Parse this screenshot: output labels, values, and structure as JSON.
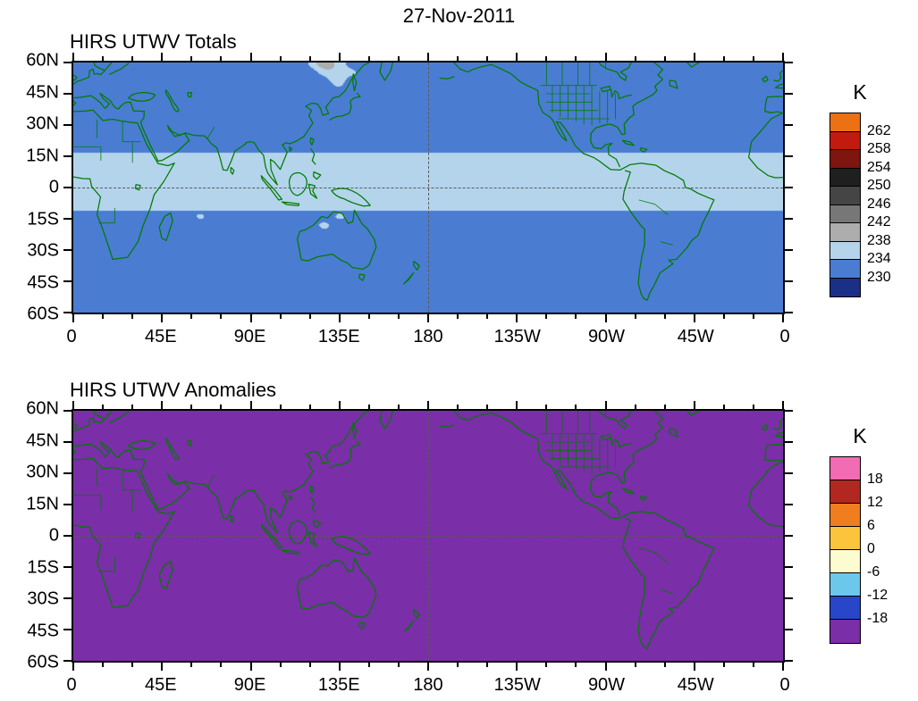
{
  "figure": {
    "date_title": "27-Nov-2011"
  },
  "map_style": {
    "coastline_color": "#007B00",
    "frame_color": "#000000",
    "reference_line_color": "#5A5A5A",
    "background": "#FFFFFF"
  },
  "chart_data": [
    {
      "type": "heatmap",
      "title": "HIRS UTWV Totals",
      "units": "K",
      "projection": "cylindrical-equidistant",
      "x_tick_labels": [
        "0",
        "45E",
        "90E",
        "135E",
        "180",
        "135W",
        "90W",
        "45W",
        "0"
      ],
      "y_tick_labels": [
        "60N",
        "45N",
        "30N",
        "15N",
        "0",
        "15S",
        "30S",
        "45S",
        "60S"
      ],
      "lon_range_deg": [
        0,
        360
      ],
      "lat_range_deg": [
        60,
        -60
      ],
      "reference_lines": [
        "meridian-180-dashed",
        "equator-dashed"
      ],
      "overlay": "green-coastlines-and-borders",
      "colorbar": {
        "title": "K",
        "boundary_labels": [
          "262",
          "258",
          "254",
          "250",
          "246",
          "242",
          "238",
          "234",
          "230"
        ],
        "levels_desc": [
          262,
          258,
          254,
          250,
          246,
          242,
          238,
          234,
          230
        ],
        "colors_top_to_bottom": [
          "#EC7014",
          "#C21A0E",
          "#7E150F",
          "#1F1F1F",
          "#454545",
          "#777777",
          "#ADADAD",
          "#B4D4EC",
          "#4A7CD2",
          "#1C2F86"
        ]
      }
    },
    {
      "type": "heatmap",
      "title": "HIRS UTWV Anomalies",
      "units": "K",
      "projection": "cylindrical-equidistant",
      "x_tick_labels": [
        "0",
        "45E",
        "90E",
        "135E",
        "180",
        "135W",
        "90W",
        "45W",
        "0"
      ],
      "y_tick_labels": [
        "60N",
        "45N",
        "30N",
        "15N",
        "0",
        "15S",
        "30S",
        "45S",
        "60S"
      ],
      "lon_range_deg": [
        0,
        360
      ],
      "lat_range_deg": [
        60,
        -60
      ],
      "reference_lines": [
        "meridian-180-dashed",
        "equator-dashed"
      ],
      "overlay": "green-coastlines-and-borders",
      "colorbar": {
        "title": "K",
        "boundary_labels": [
          "18",
          "12",
          "6",
          "0",
          "-6",
          "-12",
          "-18"
        ],
        "levels_desc": [
          18,
          12,
          6,
          0,
          -6,
          -12,
          -18
        ],
        "colors_top_to_bottom": [
          "#F16CB2",
          "#B22820",
          "#F07E1E",
          "#FCC33C",
          "#FDFBD0",
          "#6CC8EA",
          "#2746C8",
          "#7A2EA8"
        ]
      }
    }
  ]
}
